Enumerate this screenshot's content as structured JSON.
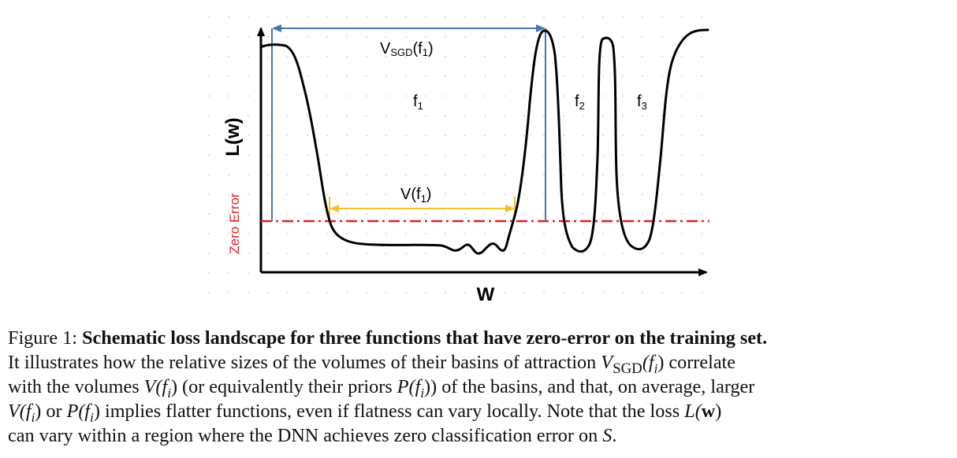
{
  "figure": {
    "y_axis_label": "L(w)",
    "x_axis_label": "W",
    "zero_error_label": "Zero Error",
    "vsgd_label": "V",
    "vsgd_sub": "SGD",
    "vsgd_arg": "(f",
    "vsgd_arg_sub": "1",
    "vsgd_close": ")",
    "v_label": "V(f",
    "v_sub": "1",
    "v_close": ")",
    "f1_label": "f",
    "f1_sub": "1",
    "f2_label": "f",
    "f2_sub": "2",
    "f3_label": "f",
    "f3_sub": "3",
    "colors": {
      "axis": "#000000",
      "curve": "#000000",
      "zero_error_line": "#e02020",
      "vsgd_bracket": "#4a73b5",
      "v_bracket": "#f2c230",
      "grid_dots": "#c8c8c8"
    }
  },
  "caption": {
    "figure_label": "Figure 1:",
    "bold_title": "Schematic loss landscape for three functions that have zero-error on the training set.",
    "line2_a": "It illustrates how the relative sizes of the volumes of their basins of attraction",
    "line2_vsgd": "V",
    "line2_vsgd_sub": "SGD",
    "line2_fi": "(f",
    "line2_fi_sub": "i",
    "line2_close": ")",
    "line2_b": "correlate",
    "line3_a": "with the volumes",
    "line3_v": "V(f",
    "line3_v_sub": "i",
    "line3_v_close": ")",
    "line3_b": "(or equivalently their priors",
    "line3_p": "P(f",
    "line3_p_sub": "i",
    "line3_p_close": "))",
    "line3_c": "of the basins, and that, on average, larger",
    "line4_v": "V(f",
    "line4_v_sub": "i",
    "line4_v_close": ")",
    "line4_or": "or",
    "line4_p": "P(f",
    "line4_p_sub": "i",
    "line4_p_close": ")",
    "line4_a": "implies flatter functions, even if flatness can vary locally. Note that the loss",
    "line4_L": "L(",
    "line4_w": "w",
    "line4_L_close": ")",
    "line5_a": "can vary within a region where the DNN achieves zero classification error on",
    "line5_S": "S",
    "line5_end": "."
  }
}
